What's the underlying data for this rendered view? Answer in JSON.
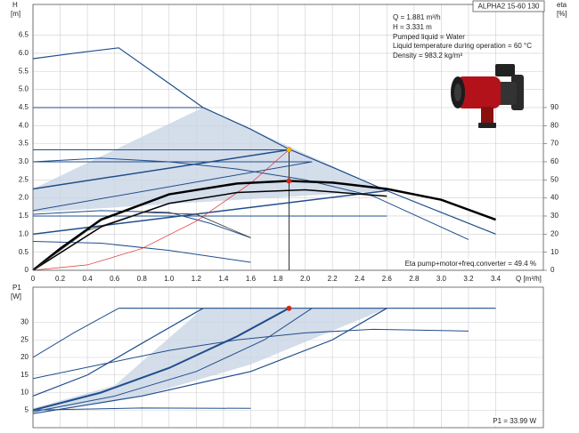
{
  "header": {
    "model": "ALPHA2 15-60 130"
  },
  "info": [
    "Q = 1.881 m³/h",
    "H = 3.331 m",
    "Pumped liquid = Water",
    "Liquid temperature during operation = 60 °C",
    "Density = 983.2 kg/m³"
  ],
  "chart_data": [
    {
      "type": "line",
      "y_label": "H",
      "y_unit": "[m]",
      "y2_label": "eta",
      "y2_unit": "[%]",
      "x_label": "Q [m³/h]",
      "note": "Eta pump+motor+freq.converter = 49.4 %",
      "xlim": [
        0,
        3.75
      ],
      "ylim": [
        0,
        7.35
      ],
      "y2lim": [
        0,
        147
      ],
      "grid": true,
      "xtick_labels": true,
      "xticks": [
        0,
        0.2,
        0.4,
        0.6,
        0.8,
        {
          "value": 1,
          "label": "1.0"
        },
        1.2,
        1.4,
        1.6,
        1.8,
        {
          "value": 2,
          "label": "2.0"
        },
        2.2,
        2.4,
        2.6,
        2.8,
        {
          "value": 3,
          "label": "3.0"
        },
        3.2,
        3.4
      ],
      "yticks": [
        0,
        0.5,
        {
          "value": 1,
          "label": "1.0"
        },
        1.5,
        {
          "value": 2,
          "label": "2.0"
        },
        2.5,
        {
          "value": 3,
          "label": "3.0"
        },
        3.5,
        {
          "value": 4,
          "label": "4.0"
        },
        4.5,
        {
          "value": 5,
          "label": "5.0"
        },
        5.5,
        {
          "value": 6,
          "label": "6.0"
        },
        6.5
      ],
      "y2ticks": [
        0,
        10,
        20,
        30,
        40,
        50,
        60,
        70,
        80,
        90
      ],
      "areas": [
        {
          "color": "#c9d5e5",
          "x": [
            0,
            1.25,
            2.6,
            0
          ],
          "values": [
            2.25,
            4.5,
            2.2,
            1.6
          ]
        }
      ],
      "series": [
        {
          "color": "#1f4e8c",
          "width": 1.2,
          "x": [
            0,
            0.3,
            0.63,
            0.95,
            1.25,
            1.6,
            1.88,
            2.2,
            2.6,
            3.0,
            3.4
          ],
          "values": [
            5.85,
            6.0,
            6.15,
            5.3,
            4.5,
            3.9,
            3.35,
            2.85,
            2.2,
            1.6,
            1.0
          ]
        },
        {
          "color": "#1f4e8c",
          "width": 1,
          "x": [
            0,
            1.25
          ],
          "values": [
            4.5,
            4.5
          ]
        },
        {
          "color": "#1f4e8c",
          "width": 1,
          "x": [
            0,
            1.88
          ],
          "values": [
            3.33,
            3.33
          ]
        },
        {
          "color": "#1f4e8c",
          "width": 1,
          "x": [
            0,
            2.05
          ],
          "values": [
            3.0,
            3.0
          ]
        },
        {
          "color": "#1f4e8c",
          "width": 1,
          "x": [
            0,
            2.6
          ],
          "values": [
            1.5,
            1.5
          ]
        },
        {
          "color": "#1f4e8c",
          "width": 1.5,
          "x": [
            0,
            1.88
          ],
          "values": [
            2.25,
            3.33
          ]
        },
        {
          "color": "#1f4e8c",
          "width": 1,
          "x": [
            0,
            2.05
          ],
          "values": [
            1.65,
            3.0
          ]
        },
        {
          "color": "#1f4e8c",
          "width": 1.5,
          "x": [
            0,
            2.6
          ],
          "values": [
            1.0,
            2.2
          ]
        },
        {
          "color": "#1f4e8c",
          "width": 1,
          "x": [
            0,
            0.5,
            1.0,
            1.5,
            2.0,
            2.5,
            3.2
          ],
          "values": [
            3.0,
            3.1,
            3.0,
            2.8,
            2.5,
            2.05,
            0.85
          ]
        },
        {
          "color": "#1f4e8c",
          "width": 1,
          "x": [
            0,
            0.5,
            1.0,
            1.3,
            1.6
          ],
          "values": [
            1.55,
            1.65,
            1.6,
            1.3,
            0.9
          ]
        },
        {
          "color": "#1f4e8c",
          "width": 1,
          "x": [
            0,
            0.5,
            1.0,
            1.6
          ],
          "values": [
            0.8,
            0.75,
            0.55,
            0.22
          ]
        },
        {
          "color": "#e03030",
          "width": 0.7,
          "x": [
            0,
            0.4,
            0.8,
            1.2,
            1.6,
            1.88
          ],
          "values": [
            0,
            0.15,
            0.6,
            1.36,
            2.41,
            3.33
          ]
        },
        {
          "color": "#000000",
          "width": 2.5,
          "axis": "y2",
          "x": [
            0,
            0.2,
            0.5,
            1.0,
            1.5,
            1.88,
            2.2,
            2.6,
            3.0,
            3.4
          ],
          "values": [
            0,
            12,
            28,
            42,
            48,
            49.4,
            48.5,
            45,
            39,
            28
          ]
        },
        {
          "color": "#000000",
          "width": 1.5,
          "axis": "y2",
          "x": [
            0,
            0.5,
            1.0,
            1.5,
            2.0,
            2.6
          ],
          "values": [
            0,
            24,
            37,
            43,
            44.5,
            41
          ]
        },
        {
          "color": "#333333",
          "width": 0.8,
          "axis": "y2",
          "x": [
            0,
            0.4,
            0.8,
            1.2,
            1.6
          ],
          "values": [
            0,
            22,
            32,
            31,
            18
          ]
        }
      ],
      "points": [
        {
          "color": "#f5b800",
          "x": 1.881,
          "value": 3.331
        },
        {
          "color": "#e02020",
          "axis": "y2",
          "x": 1.881,
          "value": 49.4
        }
      ]
    },
    {
      "type": "line",
      "y_label": "P1",
      "y_unit": "[W]",
      "note": "P1 = 33.99 W",
      "xlim": [
        0,
        3.75
      ],
      "ylim": [
        0,
        40
      ],
      "grid": true,
      "xtick_labels": false,
      "xticks": [
        0,
        0.2,
        0.4,
        0.6,
        0.8,
        1,
        1.2,
        1.4,
        1.6,
        1.8,
        2,
        2.2,
        2.4,
        2.6,
        2.8,
        3,
        3.2,
        3.4
      ],
      "yticks": [
        5,
        10,
        15,
        20,
        25,
        30
      ],
      "areas": [
        {
          "color": "#c9d5e5",
          "x": [
            0,
            0.6,
            1.25,
            2.6,
            1.6,
            0.8,
            0
          ],
          "values": [
            5.5,
            12,
            34,
            34,
            18,
            9,
            4.5
          ]
        }
      ],
      "series": [
        {
          "color": "#1f4e8c",
          "width": 1.2,
          "x": [
            0.63,
            3.4
          ],
          "values": [
            34,
            34
          ]
        },
        {
          "color": "#1f4e8c",
          "width": 1,
          "x": [
            0,
            0.3,
            0.63
          ],
          "values": [
            20,
            27,
            34
          ]
        },
        {
          "color": "#1f4e8c",
          "width": 1.2,
          "x": [
            0,
            0.4,
            0.8,
            1.25
          ],
          "values": [
            9,
            15,
            24,
            34
          ]
        },
        {
          "color": "#1f4e8c",
          "width": 2,
          "x": [
            0,
            0.5,
            1.0,
            1.5,
            1.88
          ],
          "values": [
            5,
            10,
            17,
            26,
            34
          ]
        },
        {
          "color": "#1f4e8c",
          "width": 1,
          "x": [
            0,
            0.6,
            1.2,
            1.7,
            2.05
          ],
          "values": [
            4.5,
            9,
            16,
            25,
            34
          ]
        },
        {
          "color": "#1f4e8c",
          "width": 1.2,
          "x": [
            0,
            0.8,
            1.6,
            2.2,
            2.6
          ],
          "values": [
            4,
            9,
            16,
            25,
            34
          ]
        },
        {
          "color": "#1f4e8c",
          "width": 1,
          "x": [
            0,
            0.5,
            1.0,
            1.5,
            2.0,
            2.5,
            3.2
          ],
          "values": [
            14,
            18,
            22,
            25,
            27,
            28,
            27.5
          ]
        },
        {
          "color": "#1f4e8c",
          "width": 1,
          "x": [
            0,
            0.8,
            1.6
          ],
          "values": [
            5,
            5.6,
            5.5
          ]
        }
      ],
      "points": [
        {
          "color": "#e02020",
          "x": 1.881,
          "value": 33.99
        }
      ]
    }
  ]
}
